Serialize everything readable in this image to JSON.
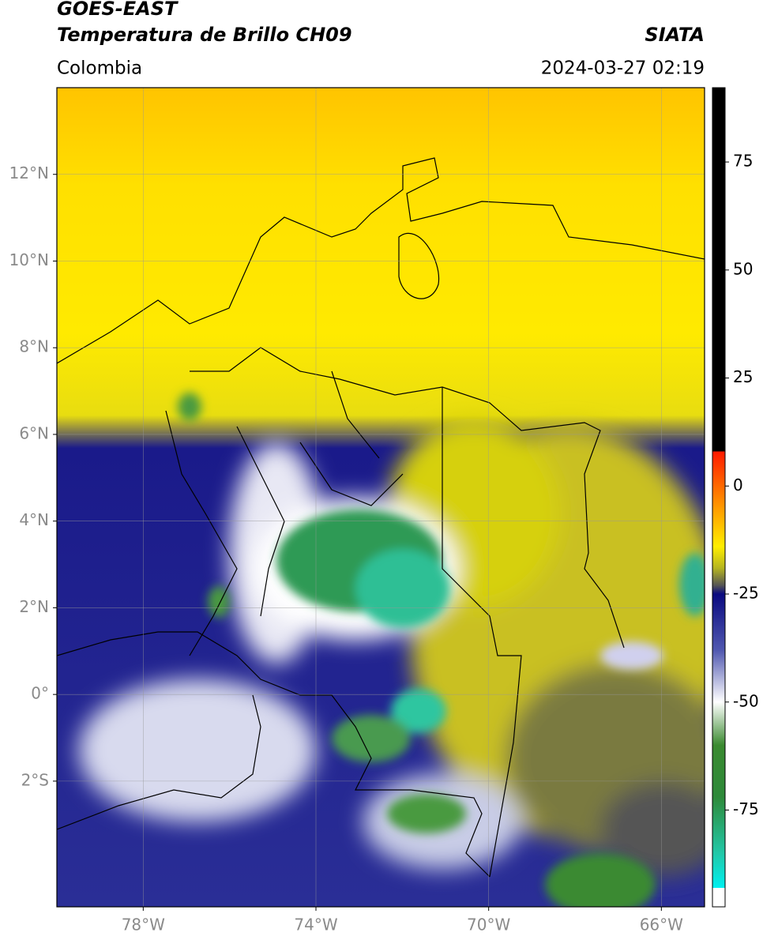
{
  "header": {
    "title": "GOES-EAST",
    "subtitle": "Temperatura de Brillo CH09",
    "region": "Colombia",
    "source": "SIATA",
    "datetime": "2024-03-27 02:19"
  },
  "map": {
    "lon_range": [
      -80,
      -65
    ],
    "lat_range": [
      -4.9,
      14
    ],
    "lon_ticks": [
      {
        "value": -78,
        "label": "78°W"
      },
      {
        "value": -74,
        "label": "74°W"
      },
      {
        "value": -70,
        "label": "70°W"
      },
      {
        "value": -66,
        "label": "66°W"
      }
    ],
    "lat_ticks": [
      {
        "value": 12,
        "label": "12°N"
      },
      {
        "value": 10,
        "label": "10°N"
      },
      {
        "value": 8,
        "label": "8°N"
      },
      {
        "value": 6,
        "label": "6°N"
      },
      {
        "value": 4,
        "label": "4°N"
      },
      {
        "value": 2,
        "label": "2°N"
      },
      {
        "value": 0,
        "label": "0°"
      },
      {
        "value": -2,
        "label": "2°S"
      }
    ]
  },
  "colorbar": {
    "range": [
      -97.4,
      92.2
    ],
    "ticks": [
      75,
      50,
      25,
      0,
      -25,
      -50,
      -75
    ],
    "stops": [
      {
        "value": 92.2,
        "color": "#000000"
      },
      {
        "value": 8,
        "color": "#000000"
      },
      {
        "value": 8,
        "color": "#ff1a00"
      },
      {
        "value": -5,
        "color": "#ff9a00"
      },
      {
        "value": -14,
        "color": "#ffee00"
      },
      {
        "value": -19,
        "color": "#b5b520"
      },
      {
        "value": -23,
        "color": "#555555"
      },
      {
        "value": -25,
        "color": "#0a0a80"
      },
      {
        "value": -38,
        "color": "#5058b0"
      },
      {
        "value": -50,
        "color": "#ffffff"
      },
      {
        "value": -60,
        "color": "#3a8a30"
      },
      {
        "value": -72,
        "color": "#2e8a3a"
      },
      {
        "value": -85,
        "color": "#22c8a8"
      },
      {
        "value": -93,
        "color": "#00f0f0"
      },
      {
        "value": -93,
        "color": "#ffffff"
      },
      {
        "value": -97.4,
        "color": "#ffffff"
      }
    ]
  }
}
